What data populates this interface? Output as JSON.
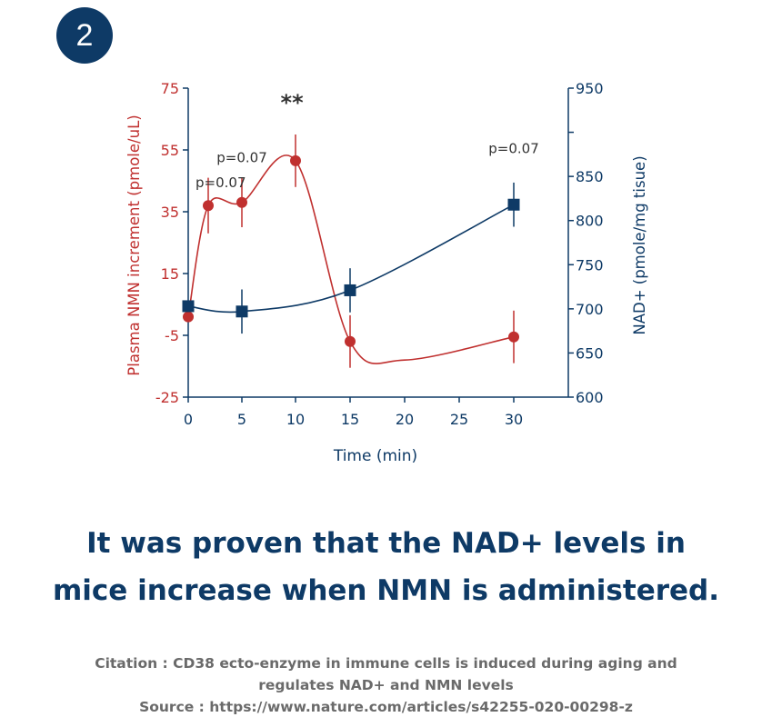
{
  "badge": {
    "number": "2"
  },
  "chart_data": {
    "type": "line",
    "xlabel": "Time (min)",
    "x_ticks": [
      "0",
      "5",
      "10",
      "15",
      "20",
      "25",
      "30"
    ],
    "x_range": [
      0,
      30
    ],
    "y_left": {
      "label": "Plasma NMN increment (pmole/uL)",
      "range": [
        -25,
        75
      ],
      "ticks": [
        "-25",
        "-5",
        "15",
        "35",
        "55",
        "75"
      ],
      "color": "#c0302f"
    },
    "y_right": {
      "label": "NAD+ (pmole/mg tisue)",
      "range": [
        600,
        950
      ],
      "ticks": [
        "600",
        "650",
        "700",
        "750",
        "800",
        "850",
        "900",
        "950"
      ],
      "color": "#0e3a66"
    },
    "series": [
      {
        "axis": "left",
        "marker": "circle",
        "color": "#c0302f",
        "x": [
          0,
          2,
          5,
          10,
          15,
          30
        ],
        "y": [
          1,
          37,
          38,
          51.5,
          -7,
          -5.5
        ],
        "err": [
          0,
          9,
          8,
          8.5,
          8.5,
          8.5
        ]
      },
      {
        "axis": "right",
        "marker": "square",
        "color": "#0e3a66",
        "x": [
          0,
          5,
          15,
          30
        ],
        "y": [
          703,
          697,
          721,
          818
        ],
        "err": [
          0,
          25,
          25,
          25
        ]
      }
    ],
    "annotations": [
      {
        "text": "p=0.07",
        "x": 2,
        "y": 43
      },
      {
        "text": "p=0.07",
        "x": 5,
        "y": 51
      },
      {
        "text": "**",
        "x": 9.5,
        "y": 68
      },
      {
        "text": "p=0.07",
        "x": 30,
        "y": 54
      }
    ],
    "grid": false,
    "legend": "none"
  },
  "headline": {
    "line1": "It was proven that the NAD+ levels in",
    "line2": "mice increase when NMN is administered."
  },
  "citation": {
    "line1": "Citation : CD38 ecto-enzyme in immune cells is induced during aging and",
    "line2": "regulates NAD+ and NMN levels",
    "line3": "Source : https://www.nature.com/articles/s42255-020-00298-z"
  }
}
